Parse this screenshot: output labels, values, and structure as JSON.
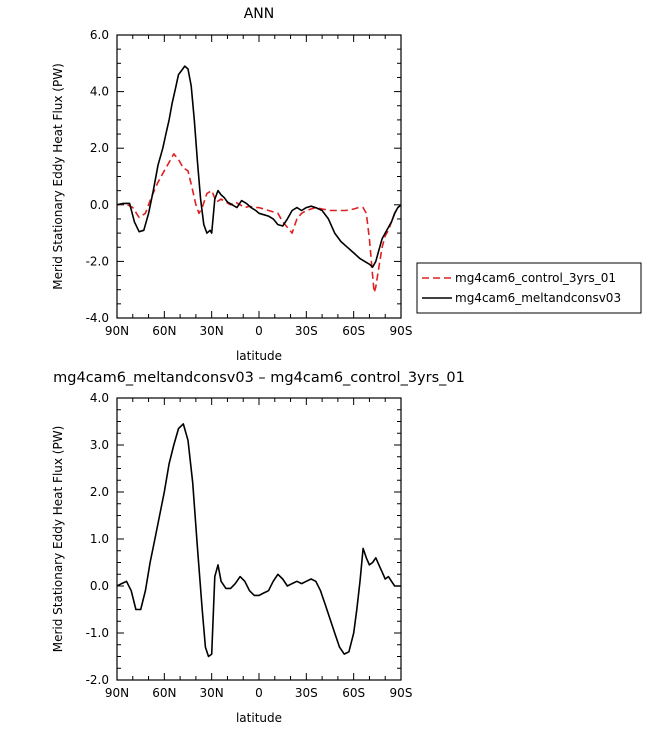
{
  "chart_data": [
    {
      "type": "line",
      "title": "ANN",
      "xlabel": "latitude",
      "ylabel": "Merid Stationary Eddy Heat Flux (PW)",
      "xlim": [
        90,
        -90
      ],
      "ylim": [
        -4.0,
        6.0
      ],
      "xticks": [
        90,
        60,
        30,
        0,
        -30,
        -60,
        -90
      ],
      "xtick_labels": [
        "90N",
        "60N",
        "30N",
        "0",
        "30S",
        "60S",
        "90S"
      ],
      "yticks": [
        -4,
        -2,
        0,
        2,
        4,
        6
      ],
      "ytick_labels": [
        "-4.0",
        "-2.0",
        "0.0",
        "2.0",
        "4.0",
        "6.0"
      ],
      "legend_position": "right",
      "series": [
        {
          "name": "mg4cam6_control_3yrs_01",
          "color": "#e02020",
          "dash": "dashed",
          "x": [
            90,
            85,
            80,
            76,
            72,
            68,
            64,
            60,
            57,
            54,
            51,
            48,
            45,
            42,
            40,
            38,
            36,
            33,
            30,
            27,
            24,
            21,
            18,
            15,
            12,
            9,
            6,
            3,
            0,
            -3,
            -6,
            -9,
            -12,
            -15,
            -18,
            -21,
            -24,
            -27,
            -30,
            -33,
            -36,
            -40,
            -45,
            -50,
            -55,
            -60,
            -63,
            -66,
            -68,
            -70,
            -72,
            -73,
            -74,
            -76,
            -78,
            -80,
            -82,
            -84,
            -86,
            -88,
            -90
          ],
          "y": [
            0.0,
            0.05,
            -0.1,
            -0.45,
            -0.3,
            0.3,
            0.8,
            1.2,
            1.5,
            1.8,
            1.6,
            1.3,
            1.2,
            0.5,
            0.0,
            -0.3,
            -0.1,
            0.4,
            0.5,
            0.1,
            0.2,
            0.1,
            0.0,
            0.1,
            0.0,
            -0.1,
            -0.05,
            -0.1,
            -0.1,
            -0.15,
            -0.2,
            -0.25,
            -0.3,
            -0.6,
            -0.8,
            -1.0,
            -0.5,
            -0.3,
            -0.2,
            -0.15,
            -0.1,
            -0.15,
            -0.2,
            -0.2,
            -0.2,
            -0.15,
            -0.1,
            -0.1,
            -0.3,
            -1.2,
            -2.5,
            -3.1,
            -2.9,
            -2.2,
            -1.5,
            -1.1,
            -0.9,
            -0.6,
            -0.3,
            -0.1,
            0.0
          ]
        },
        {
          "name": "mg4cam6_meltandconsv03",
          "color": "#000000",
          "dash": "solid",
          "x": [
            90,
            86,
            82,
            79,
            76,
            73,
            70,
            67,
            64,
            61,
            59,
            57,
            55,
            53,
            51,
            49,
            47,
            45,
            43,
            41,
            39,
            37,
            35,
            33,
            31,
            30,
            28,
            26,
            24,
            22,
            20,
            17,
            14,
            11,
            8,
            5,
            2,
            0,
            -3,
            -6,
            -9,
            -12,
            -15,
            -18,
            -21,
            -24,
            -27,
            -30,
            -33,
            -36,
            -40,
            -44,
            -48,
            -52,
            -56,
            -60,
            -64,
            -67,
            -70,
            -72,
            -74,
            -76,
            -78,
            -80,
            -82,
            -84,
            -86,
            -88,
            -90
          ],
          "y": [
            0.0,
            0.05,
            0.05,
            -0.6,
            -0.95,
            -0.9,
            -0.3,
            0.5,
            1.4,
            2.0,
            2.5,
            3.0,
            3.6,
            4.1,
            4.6,
            4.75,
            4.9,
            4.8,
            4.2,
            3.0,
            1.5,
            0.2,
            -0.7,
            -1.0,
            -0.9,
            -1.0,
            0.2,
            0.5,
            0.35,
            0.25,
            0.1,
            0.0,
            -0.1,
            0.15,
            0.05,
            -0.1,
            -0.2,
            -0.3,
            -0.35,
            -0.4,
            -0.5,
            -0.7,
            -0.75,
            -0.5,
            -0.2,
            -0.1,
            -0.2,
            -0.1,
            -0.05,
            -0.1,
            -0.2,
            -0.5,
            -1.0,
            -1.3,
            -1.5,
            -1.7,
            -1.9,
            -2.0,
            -2.1,
            -2.2,
            -2.0,
            -1.6,
            -1.2,
            -1.0,
            -0.8,
            -0.6,
            -0.3,
            -0.1,
            0.0
          ]
        }
      ]
    },
    {
      "type": "line",
      "title": "mg4cam6_meltandconsv03 – mg4cam6_control_3yrs_01",
      "xlabel": "latitude",
      "ylabel": "Merid Stationary Eddy Heat Flux (PW)",
      "xlim": [
        90,
        -90
      ],
      "ylim": [
        -2.0,
        4.0
      ],
      "xticks": [
        90,
        60,
        30,
        0,
        -30,
        -60,
        -90
      ],
      "xtick_labels": [
        "90N",
        "60N",
        "30N",
        "0",
        "30S",
        "60S",
        "90S"
      ],
      "yticks": [
        -2,
        -1,
        0,
        1,
        2,
        3,
        4
      ],
      "ytick_labels": [
        "-2.0",
        "-1.0",
        "0.0",
        "1.0",
        "2.0",
        "3.0",
        "4.0"
      ],
      "series": [
        {
          "color": "#000000",
          "dash": "solid",
          "x": [
            90,
            87,
            84,
            81,
            78,
            75,
            72,
            69,
            66,
            63,
            60,
            57,
            54,
            51,
            48,
            45,
            42,
            39,
            36,
            34,
            32,
            30,
            28,
            26,
            24,
            21,
            18,
            15,
            12,
            9,
            6,
            3,
            0,
            -3,
            -6,
            -9,
            -12,
            -15,
            -18,
            -21,
            -24,
            -27,
            -30,
            -33,
            -36,
            -39,
            -42,
            -45,
            -48,
            -51,
            -54,
            -57,
            -60,
            -62,
            -64,
            -66,
            -68,
            -70,
            -72,
            -74,
            -76,
            -78,
            -80,
            -82,
            -84,
            -86,
            -88,
            -90
          ],
          "y": [
            0.0,
            0.05,
            0.1,
            -0.1,
            -0.5,
            -0.5,
            -0.1,
            0.5,
            1.0,
            1.5,
            2.0,
            2.6,
            3.0,
            3.35,
            3.45,
            3.1,
            2.2,
            0.8,
            -0.5,
            -1.3,
            -1.5,
            -1.45,
            0.2,
            0.45,
            0.1,
            -0.05,
            -0.05,
            0.05,
            0.2,
            0.1,
            -0.1,
            -0.2,
            -0.2,
            -0.15,
            -0.1,
            0.1,
            0.25,
            0.15,
            0.0,
            0.05,
            0.1,
            0.05,
            0.1,
            0.15,
            0.1,
            -0.1,
            -0.4,
            -0.7,
            -1.0,
            -1.3,
            -1.45,
            -1.4,
            -1.0,
            -0.5,
            0.1,
            0.8,
            0.6,
            0.45,
            0.5,
            0.6,
            0.45,
            0.3,
            0.15,
            0.2,
            0.1,
            0.0,
            0.0,
            0.0
          ]
        }
      ]
    }
  ]
}
